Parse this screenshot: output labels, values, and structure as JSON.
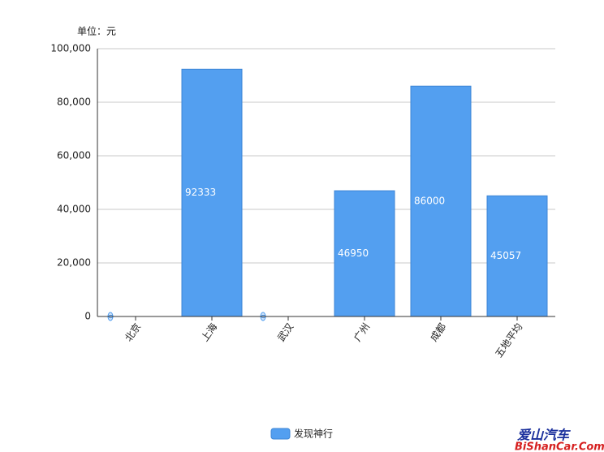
{
  "chart_data": {
    "type": "bar",
    "unit_label": "单位：元",
    "categories": [
      "北京",
      "上海",
      "武汉",
      "广州",
      "成都",
      "五地平均"
    ],
    "series": [
      {
        "name": "发现神行",
        "color": "#539ff0",
        "values": [
          0,
          92333,
          0,
          46950,
          86000,
          45057
        ]
      }
    ],
    "ylim": [
      0,
      100000
    ],
    "yticks": [
      0,
      {
        "value": 20000,
        "label": "20,000"
      },
      {
        "value": 40000,
        "label": "40,000"
      },
      {
        "value": 60000,
        "label": "60,000"
      },
      {
        "value": 80000,
        "label": "80,000"
      },
      {
        "value": 100000,
        "label": "100,000"
      }
    ],
    "grid": true,
    "legend": "bottom",
    "watermark": {
      "title": "爱山汽车",
      "url": "BiShanCar.Com"
    }
  }
}
